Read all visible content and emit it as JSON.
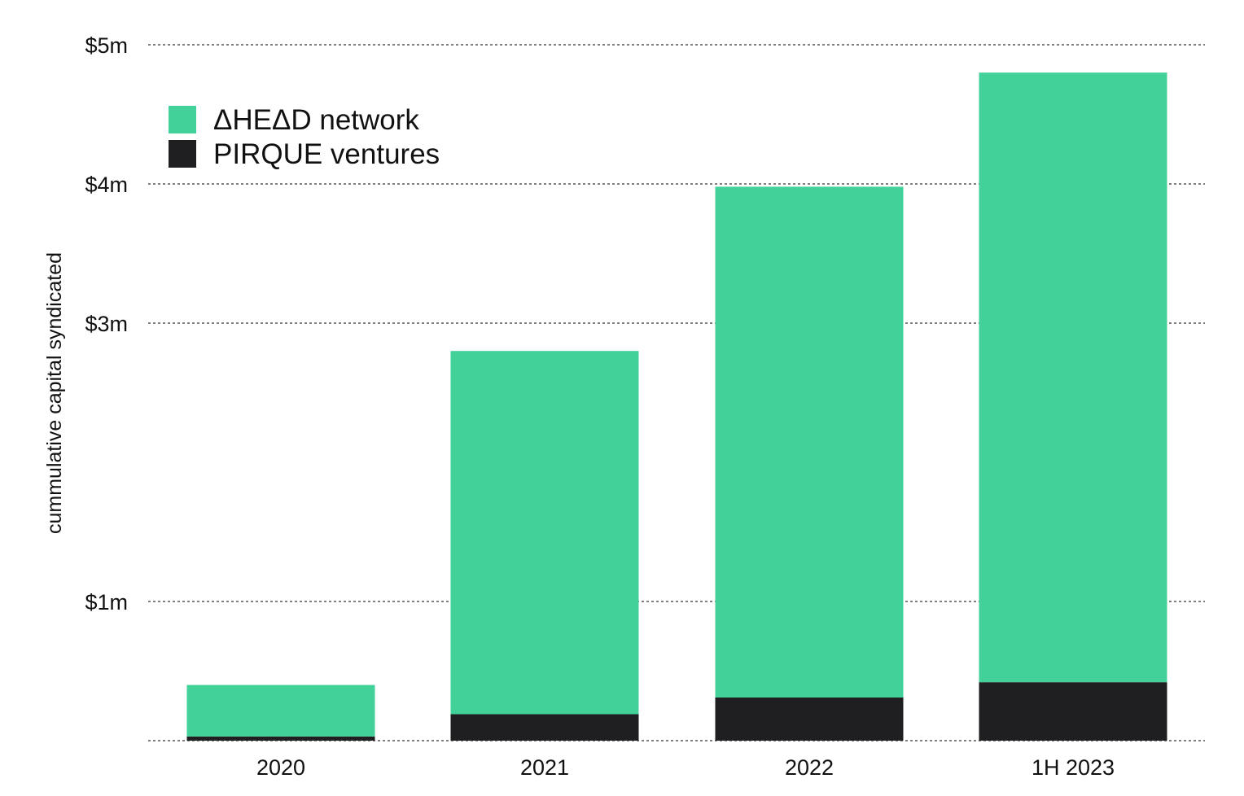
{
  "chart_data": {
    "type": "bar",
    "stacked": true,
    "categories": [
      "2020",
      "2021",
      "2022",
      "1H 2023"
    ],
    "series": [
      {
        "name": "PIRQUE ventures",
        "color": "#1f1f21",
        "values": [
          0.03,
          0.19,
          0.31,
          0.42
        ]
      },
      {
        "name": "ΔHEΔD network",
        "color": "#43d19a",
        "values": [
          0.37,
          2.61,
          3.67,
          4.38
        ]
      }
    ],
    "legend_order": [
      "ΔHEΔD network",
      "PIRQUE ventures"
    ],
    "ylabel": "cummulative capital syndicated",
    "xlabel": "",
    "ylim": [
      0,
      5
    ],
    "yticks": [
      {
        "value": 1,
        "label": "$1m"
      },
      {
        "value": 3,
        "label": "$3m"
      },
      {
        "value": 4,
        "label": "$4m"
      },
      {
        "value": 5,
        "label": "$5m"
      }
    ],
    "grid": true,
    "legend_position": "top-left"
  }
}
